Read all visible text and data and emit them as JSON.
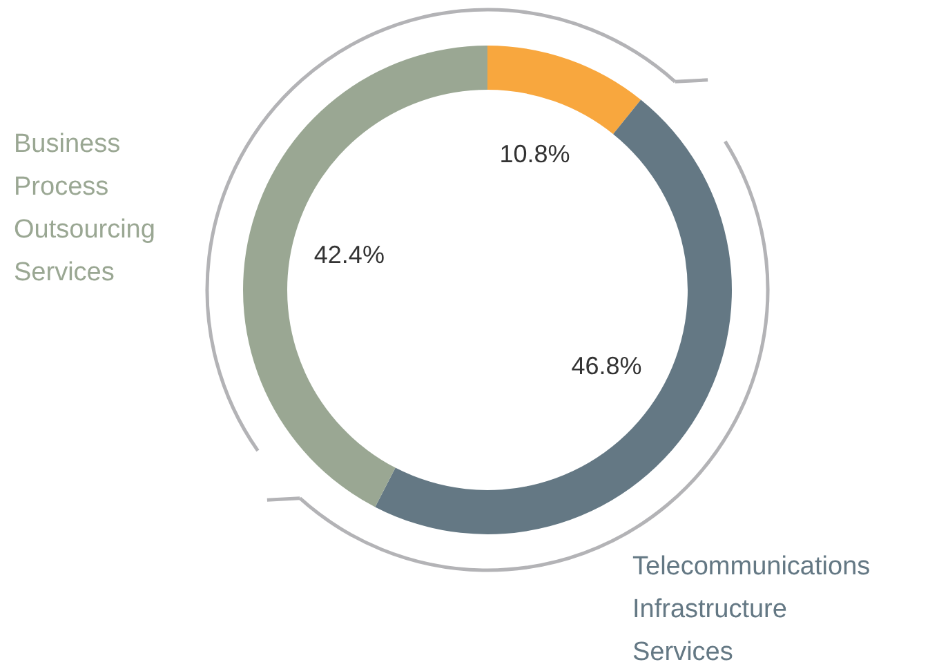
{
  "chart_data": {
    "type": "donut",
    "categories": [
      null,
      "Telecommunications Infrastructure Services",
      "Business Process Outsourcing Services"
    ],
    "values": [
      10.8,
      46.8,
      42.4
    ],
    "colors": [
      "#f8a73e",
      "#647884",
      "#9aa793"
    ],
    "value_labels": [
      "10.8%",
      "46.8%",
      "42.4%"
    ]
  }
}
